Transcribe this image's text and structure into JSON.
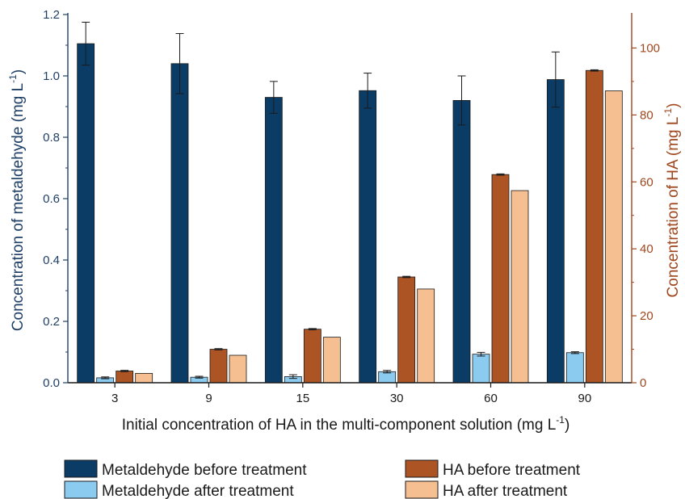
{
  "chart_data": {
    "type": "bar",
    "categories": [
      "3",
      "9",
      "15",
      "30",
      "60",
      "90"
    ],
    "xlabel": "Initial concentration of HA in the multi-component solution (mg L",
    "xlabel_sup": "-1",
    "xlabel_end": ")",
    "ylabel_left": "Concentration of metaldehyde (mg L",
    "ylabel_left_sup": "-1",
    "ylabel_left_end": ")",
    "ylabel_right": "Concentration of HA (mg L",
    "ylabel_right_sup": "-1",
    "ylabel_right_end": ")",
    "ylim_left": [
      0,
      1.2
    ],
    "yticks_left": [
      "0.0",
      "0.2",
      "0.4",
      "0.6",
      "0.8",
      "1.0",
      "1.2"
    ],
    "ylim_right": [
      0,
      110
    ],
    "yticks_right": [
      "0",
      "20",
      "40",
      "60",
      "80",
      "100"
    ],
    "axis_colors": {
      "left": "#1f3f66",
      "right": "#a0461c"
    },
    "legend_position": "bottom",
    "series": [
      {
        "name": "Metaldehyde before treatment",
        "axis": "left",
        "color": "#0b3c66",
        "values": [
          1.105,
          1.04,
          0.93,
          0.952,
          0.92,
          0.988
        ],
        "errors": [
          0.07,
          0.098,
          0.052,
          0.057,
          0.08,
          0.09
        ]
      },
      {
        "name": "Metaldehyde after treatment",
        "axis": "left",
        "color": "#8ccbf0",
        "values": [
          0.016,
          0.018,
          0.02,
          0.036,
          0.093,
          0.098
        ],
        "errors": [
          0.003,
          0.003,
          0.006,
          0.004,
          0.006,
          0.003
        ]
      },
      {
        "name": "HA before treatment",
        "axis": "right",
        "color": "#ac5424",
        "values": [
          3.5,
          10.0,
          16.0,
          31.6,
          62.2,
          93.3
        ],
        "errors": [
          0.2,
          0.2,
          0.2,
          0.2,
          0.2,
          0.2
        ]
      },
      {
        "name": "HA after treatment",
        "axis": "right",
        "color": "#f6bf92",
        "values": [
          2.8,
          8.2,
          13.6,
          28.0,
          57.4,
          87.2
        ],
        "errors": [
          0,
          0,
          0,
          0,
          0,
          0
        ]
      }
    ]
  }
}
